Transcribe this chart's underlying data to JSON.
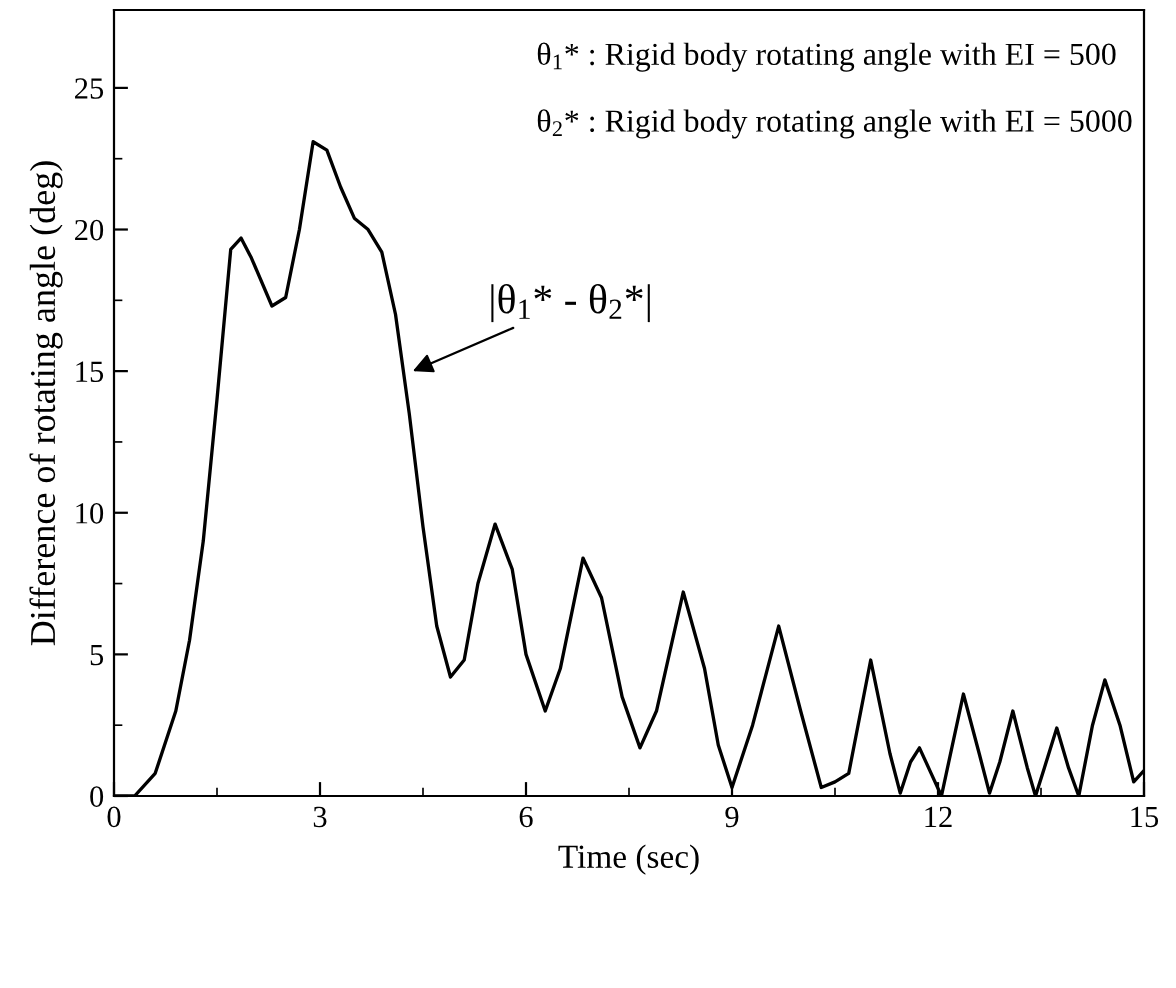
{
  "chart_data": {
    "type": "line",
    "xlabel": "Time (sec)",
    "ylabel": "Difference of rotating angle (deg)",
    "xlim": [
      0,
      15
    ],
    "xticks": [
      0,
      3,
      6,
      9,
      12,
      15
    ],
    "ylim": [
      0,
      27.75
    ],
    "yticks": [
      0,
      5,
      10,
      15,
      20,
      25
    ],
    "grid": false,
    "legend": false,
    "marker": "none",
    "line_style": "solid",
    "annotations": [
      "θ$_{1}$* : Rigid body rotating angle with EI = 500",
      "θ$_{2}$* : Rigid body rotating angle with EI = 5000",
      {
        "text": "|θ$_{1}$* - θ$_{2}$*|",
        "x": 4.35,
        "y": 15
      }
    ],
    "series": [
      {
        "color": "#000000",
        "x": [
          0,
          0.3,
          0.6,
          0.9,
          1.1,
          1.3,
          1.5,
          1.7,
          1.85,
          2.0,
          2.3,
          2.5,
          2.7,
          2.9,
          3.1,
          3.3,
          3.5,
          3.7,
          3.9,
          4.1,
          4.3,
          4.5,
          4.7,
          4.9,
          5.1,
          5.3,
          5.55,
          5.8,
          6.0,
          6.28,
          6.5,
          6.83,
          7.1,
          7.4,
          7.66,
          7.9,
          8.29,
          8.6,
          8.8,
          9.0,
          9.3,
          9.68,
          10.0,
          10.3,
          10.5,
          10.7,
          11.02,
          11.3,
          11.45,
          11.6,
          11.73,
          11.9,
          12.05,
          12.37,
          12.6,
          12.75,
          12.9,
          13.09,
          13.3,
          13.42,
          13.55,
          13.73,
          13.9,
          14.05,
          14.25,
          14.43,
          14.65,
          14.85,
          15
        ],
        "values": [
          0,
          0,
          0.8,
          3,
          5.5,
          9,
          14,
          19.3,
          19.7,
          19,
          17.3,
          17.6,
          20,
          23.1,
          22.8,
          21.5,
          20.4,
          20,
          19.2,
          17,
          13.5,
          9.5,
          6,
          4.2,
          4.8,
          7.5,
          9.6,
          8,
          5,
          3,
          4.5,
          8.4,
          7,
          3.5,
          1.7,
          3,
          7.2,
          4.5,
          1.8,
          0.3,
          2.5,
          6.0,
          3,
          0.3,
          0.5,
          0.8,
          4.8,
          1.5,
          0.1,
          1.2,
          1.7,
          0.8,
          0,
          3.6,
          1.5,
          0.1,
          1.2,
          3.0,
          1,
          0,
          1,
          2.4,
          1,
          0,
          2.5,
          4.1,
          2.5,
          0.5,
          0.9
        ]
      }
    ]
  }
}
